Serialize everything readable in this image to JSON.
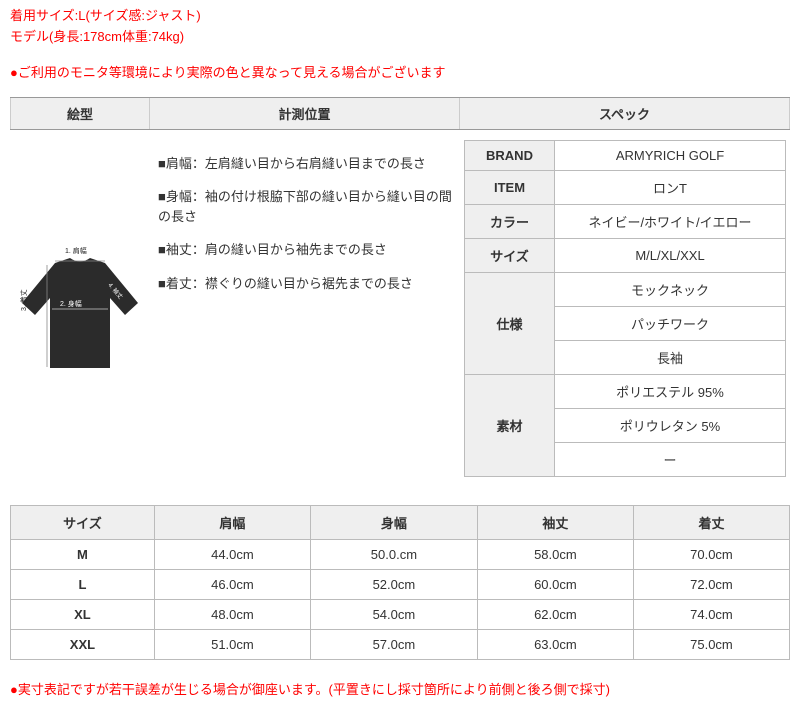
{
  "topInfo": {
    "line1": "着用サイズ:L(サイズ感:ジャスト)",
    "line2": "モデル(身長:178cm体重:74kg)"
  },
  "notice1": "●ご利用のモニタ等環境により実際の色と異なって見える場合がございます",
  "headers": {
    "h1": "絵型",
    "h2": "計測位置",
    "h3": "スペック"
  },
  "measurements": [
    "■肩幅：左肩縫い目から右肩縫い目までの長さ",
    "■身幅：袖の付け根脇下部の縫い目から縫い目の間の長さ",
    "■袖丈：肩の縫い目から袖先までの長さ",
    "■着丈：襟ぐりの縫い目から裾先までの長さ"
  ],
  "diagramLabels": {
    "shoulder": "1. 肩幅",
    "chest": "2. 身幅",
    "length": "3. 着丈",
    "sleeve": "4. 袖丈"
  },
  "spec": {
    "rows": [
      {
        "label": "BRAND",
        "values": [
          "ARMYRICH GOLF"
        ]
      },
      {
        "label": "ITEM",
        "values": [
          "ロンT"
        ]
      },
      {
        "label": "カラー",
        "values": [
          "ネイビー/ホワイト/イエロー"
        ]
      },
      {
        "label": "サイズ",
        "values": [
          "M/L/XL/XXL"
        ]
      },
      {
        "label": "仕様",
        "values": [
          "モックネック",
          "パッチワーク",
          "長袖"
        ]
      },
      {
        "label": "素材",
        "values": [
          "ポリエステル 95%",
          "ポリウレタン 5%",
          "ー"
        ]
      }
    ]
  },
  "sizeTable": {
    "columns": [
      "サイズ",
      "肩幅",
      "身幅",
      "袖丈",
      "着丈"
    ],
    "rows": [
      [
        "M",
        "44.0cm",
        "50.0.cm",
        "58.0cm",
        "70.0cm"
      ],
      [
        "L",
        "46.0cm",
        "52.0cm",
        "60.0cm",
        "72.0cm"
      ],
      [
        "XL",
        "48.0cm",
        "54.0cm",
        "62.0cm",
        "74.0cm"
      ],
      [
        "XXL",
        "51.0cm",
        "57.0cm",
        "63.0cm",
        "75.0cm"
      ]
    ]
  },
  "notice2": "●実寸表記ですが若干誤差が生じる場合が御座います。(平置きにし採寸箇所により前側と後ろ側で採寸)",
  "colors": {
    "red": "#ff0000",
    "headerBg": "#efefef",
    "border": "#bbbbbb"
  }
}
